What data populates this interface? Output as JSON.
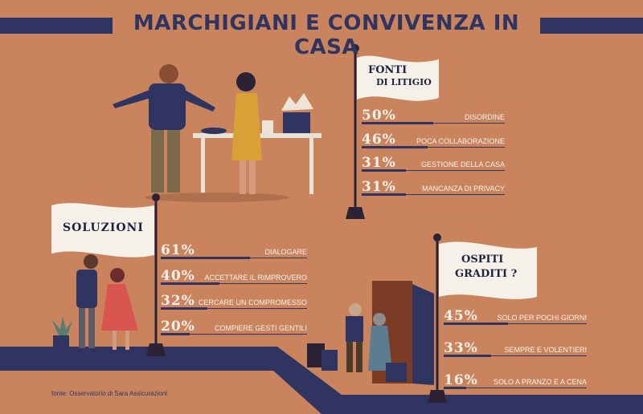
{
  "header": {
    "title": "MARCHIGIANI E CONVIVENZA IN CASA"
  },
  "source": "fonte: Osservatorio di Sara Assicurazioni",
  "colors": {
    "background": "#c9845e",
    "navy": "#2f3560",
    "cream": "#f6f1e8"
  },
  "chart_data": [
    {
      "type": "bar",
      "title": "FONTI DI LITIGIO",
      "categories": [
        "DISORDINE",
        "POCA COLLABORAZIONE",
        "GESTIONE DELLA CASA",
        "MANCANZA DI  PRIVACY"
      ],
      "values": [
        50,
        46,
        31,
        31
      ],
      "value_labels": [
        "50%",
        "46%",
        "31%",
        "31%"
      ],
      "unit": "%"
    },
    {
      "type": "bar",
      "title": "SOLUZIONI",
      "categories": [
        "DIALOGARE",
        "ACCETTARE IL RIMPROVERO",
        "CERCARE UN COMPROMESSO",
        "COMPIERE GESTI GENTILI"
      ],
      "values": [
        61,
        40,
        32,
        20
      ],
      "value_labels": [
        "61%",
        "40%",
        "32%",
        "20%"
      ],
      "unit": "%"
    },
    {
      "type": "bar",
      "title": "OSPITI GRADITI ?",
      "categories": [
        "SOLO PER POCHI GIORNI",
        "SEMPRE E VOLENTIERI",
        "SOLO A PRANZO E A CENA"
      ],
      "values": [
        45,
        33,
        16
      ],
      "value_labels": [
        "45%",
        "33%",
        "16%"
      ],
      "unit": "%"
    }
  ],
  "flags": {
    "fonti_line1": "FONTI",
    "fonti_line2": "DI LITIGIO",
    "soluzioni": "SOLUZIONI",
    "ospiti_line1": "OSPITI",
    "ospiti_line2": "GRADITI ?"
  }
}
